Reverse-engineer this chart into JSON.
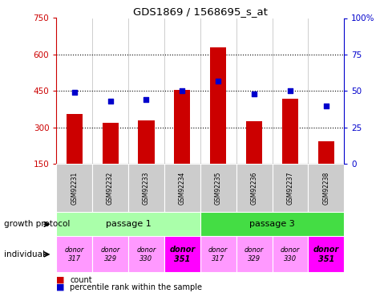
{
  "title": "GDS1869 / 1568695_s_at",
  "samples": [
    "GSM92231",
    "GSM92232",
    "GSM92233",
    "GSM92234",
    "GSM92235",
    "GSM92236",
    "GSM92237",
    "GSM92238"
  ],
  "counts": [
    355,
    320,
    330,
    455,
    630,
    325,
    420,
    245
  ],
  "percentiles": [
    49,
    43,
    44,
    50,
    57,
    48,
    50,
    40
  ],
  "ylim_left": [
    150,
    750
  ],
  "ylim_right": [
    0,
    100
  ],
  "yticks_left": [
    150,
    300,
    450,
    600,
    750
  ],
  "yticks_right": [
    0,
    25,
    50,
    75,
    100
  ],
  "bar_color": "#cc0000",
  "dot_color": "#0000cc",
  "passage1_color": "#aaffaa",
  "passage3_color": "#44dd44",
  "donor_light_color": "#ff99ff",
  "donor_dark_color": "#ff00ff",
  "sample_bg_color": "#cccccc",
  "individuals": [
    "donor\n317",
    "donor\n329",
    "donor\n330",
    "donor\n351",
    "donor\n317",
    "donor\n329",
    "donor\n330",
    "donor\n351"
  ],
  "individual_bold": [
    false,
    false,
    false,
    true,
    false,
    false,
    false,
    true
  ]
}
